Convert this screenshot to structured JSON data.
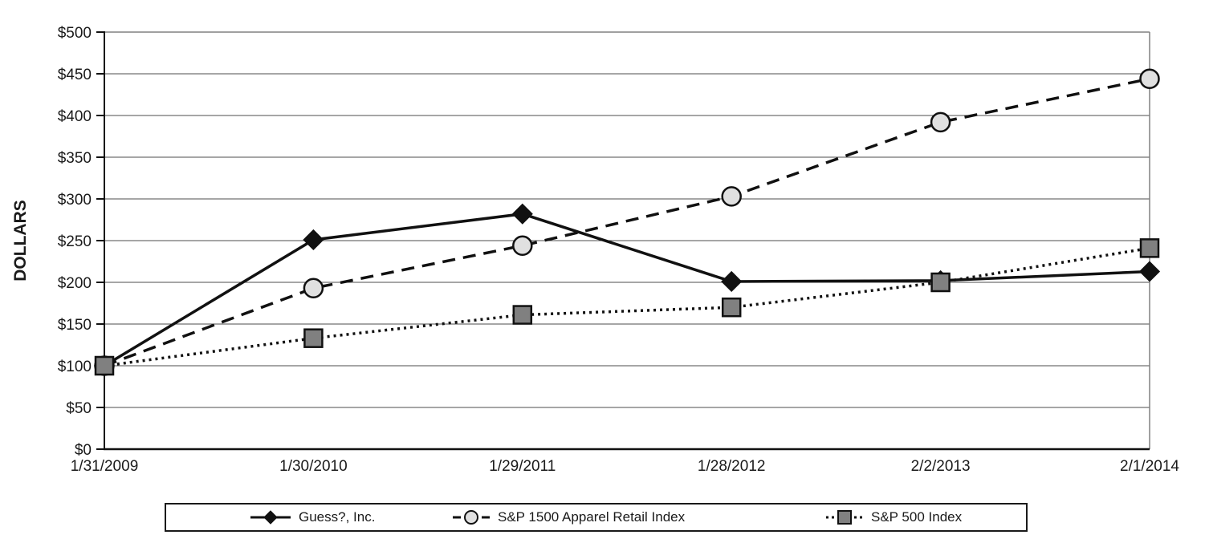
{
  "chart_data": {
    "type": "line",
    "x": [
      "1/31/2009",
      "1/30/2010",
      "1/29/2011",
      "1/28/2012",
      "2/2/2013",
      "2/1/2014"
    ],
    "series": [
      {
        "name": "Guess?, Inc.",
        "values": [
          100,
          251,
          282,
          201,
          202,
          213
        ],
        "line": "solid",
        "marker": "diamond",
        "marker_fill": "#111111",
        "line_color": "#111111"
      },
      {
        "name": "S&P 1500 Apparel Retail Index",
        "values": [
          100,
          193,
          244,
          303,
          392,
          444
        ],
        "line": "dashed",
        "marker": "circle",
        "marker_fill": "#e0e0e0",
        "line_color": "#111111"
      },
      {
        "name": "S&P 500 Index",
        "values": [
          100,
          133,
          161,
          170,
          200,
          241
        ],
        "line": "dotted",
        "marker": "square",
        "marker_fill": "#808080",
        "line_color": "#111111"
      }
    ],
    "title": "",
    "xlabel": "",
    "ylabel": "DOLLARS",
    "ylim": [
      0,
      500
    ],
    "ytick_step": 50,
    "tick_prefix": "$",
    "y_ticks": [
      "$0",
      "$50",
      "$100",
      "$150",
      "$200",
      "$250",
      "$300",
      "$350",
      "$400",
      "$450",
      "$500"
    ],
    "grid": true,
    "legend_position": "bottom"
  },
  "colors": {
    "line": "#111111",
    "grid": "#4d4d4d",
    "plot_border": "#808080",
    "axis": "#111111",
    "circle_fill": "#e0e0e0",
    "square_fill": "#808080",
    "text": "#1a1a1a"
  }
}
